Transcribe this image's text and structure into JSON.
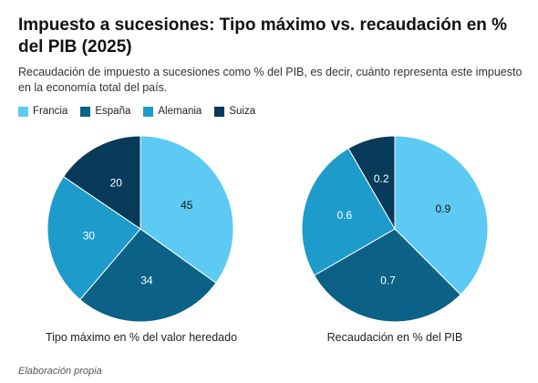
{
  "title": "Impuesto a sucesiones: Tipo máximo vs. recaudación en % del PIB (2025)",
  "subtitle": "Recaudación de impuesto a sucesiones como % del PIB, es decir, cuánto representa este impuesto en la economía total del país.",
  "footer": "Elaboración propia",
  "legend": [
    {
      "name": "Francia",
      "color": "#5ccaf2"
    },
    {
      "name": "España",
      "color": "#0b6186"
    },
    {
      "name": "Alemania",
      "color": "#1d9ccb"
    },
    {
      "name": "Suiza",
      "color": "#083a5a"
    }
  ],
  "chart_data": [
    {
      "type": "pie",
      "caption": "Tipo máximo en % del valor heredado",
      "categories": [
        "Francia",
        "España",
        "Alemania",
        "Suiza"
      ],
      "values": [
        45,
        34,
        30,
        20
      ],
      "labels": [
        "45",
        "34",
        "30",
        "20"
      ],
      "colors": [
        "#5ccaf2",
        "#0b6186",
        "#1d9ccb",
        "#083a5a"
      ]
    },
    {
      "type": "pie",
      "caption": "Recaudación en % del PIB",
      "categories": [
        "Francia",
        "España",
        "Alemania",
        "Suiza"
      ],
      "values": [
        0.9,
        0.7,
        0.6,
        0.2
      ],
      "labels": [
        "0.9",
        "0.7",
        "0.6",
        "0.2"
      ],
      "colors": [
        "#5ccaf2",
        "#0b6186",
        "#1d9ccb",
        "#083a5a"
      ]
    }
  ]
}
